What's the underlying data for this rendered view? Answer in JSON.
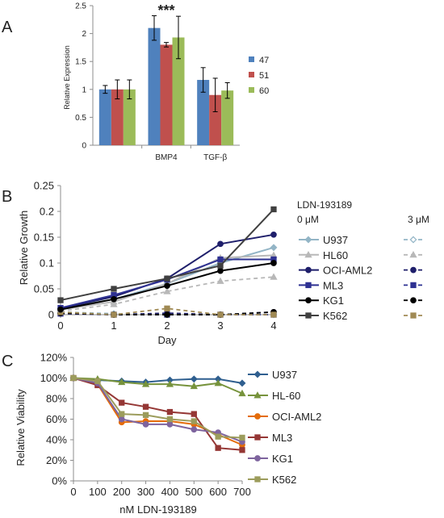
{
  "chart_data": [
    {
      "type": "bar",
      "panel_label": "A",
      "categories": [
        "",
        "BMP4",
        "TGF-β"
      ],
      "series": [
        {
          "name": "47",
          "values": [
            1.0,
            2.1,
            1.17
          ],
          "error": [
            0.07,
            0.22,
            0.22
          ],
          "color": "#4f81bd"
        },
        {
          "name": "51",
          "values": [
            1.0,
            1.8,
            0.9
          ],
          "error": [
            0.17,
            0.04,
            0.3
          ],
          "color": "#c0504d"
        },
        {
          "name": "60",
          "values": [
            1.0,
            1.93,
            0.98
          ],
          "error": [
            0.17,
            0.38,
            0.14
          ],
          "color": "#9bbb59"
        }
      ],
      "xlabel": "",
      "ylabel": "Relative Expression",
      "ylim": [
        0,
        2.5
      ],
      "yticks": [
        "0",
        "0.5",
        "1",
        "1.5",
        "2",
        "2.5"
      ],
      "annotations": [
        {
          "text": "***",
          "category": "BMP4"
        }
      ],
      "legend_position": "right"
    },
    {
      "type": "line",
      "panel_label": "B",
      "x": [
        0,
        1,
        2,
        3,
        4
      ],
      "xlabel": "Day",
      "ylabel": "Relative Growth",
      "ylim": [
        0,
        0.25
      ],
      "xticks": [
        "0",
        "1",
        "2",
        "3",
        "4"
      ],
      "yticks": [
        "0",
        "0.05",
        "0.1",
        "0.15",
        "0.2",
        "0.25"
      ],
      "legend_title": "LDN-193189",
      "legend_col1": "0 μM",
      "legend_col2": "3 μM",
      "legend_position": "right",
      "series": [
        {
          "name": "U937",
          "color": "#93b5c6",
          "marker": "diamond",
          "values": [
            0.012,
            0.03,
            0.06,
            0.1,
            0.13
          ],
          "treated": [
            0.005,
            0.002,
            0.0,
            0.0,
            0.0
          ]
        },
        {
          "name": "HL60",
          "color": "#b8b8b8",
          "marker": "triangle",
          "values": [
            0.01,
            0.025,
            0.06,
            0.11,
            0.115
          ],
          "treated": [
            0.007,
            0.02,
            0.045,
            0.065,
            0.073
          ]
        },
        {
          "name": "OCI-AML2",
          "color": "#1f1f6b",
          "marker": "circle",
          "values": [
            0.012,
            0.035,
            0.07,
            0.137,
            0.155
          ],
          "treated": [
            0.003,
            0.0,
            0.003,
            0.0,
            0.005
          ]
        },
        {
          "name": "ML3",
          "color": "#2e3192",
          "marker": "square",
          "values": [
            0.013,
            0.038,
            0.068,
            0.107,
            0.107
          ],
          "treated": [
            0.002,
            0.0,
            0.0,
            0.0,
            0.0
          ]
        },
        {
          "name": "KG1",
          "color": "#000000",
          "marker": "circle",
          "values": [
            0.01,
            0.03,
            0.056,
            0.085,
            0.1
          ],
          "treated": [
            0.003,
            0.0,
            0.0,
            0.0,
            0.005
          ]
        },
        {
          "name": "K562",
          "color": "#404040",
          "marker": "square",
          "values": [
            0.028,
            0.05,
            0.07,
            0.095,
            0.204
          ],
          "treated": [
            0.005,
            0.0,
            0.012,
            0.0,
            0.0
          ],
          "treated_color": "#a08a54"
        }
      ]
    },
    {
      "type": "line",
      "panel_label": "C",
      "x": [
        0,
        100,
        200,
        300,
        400,
        500,
        600,
        700
      ],
      "xlabel": "nM LDN-193189",
      "ylabel": "Relative Viability",
      "ylim": [
        0,
        1.2
      ],
      "xticks": [
        "0",
        "100",
        "200",
        "300",
        "400",
        "500",
        "600",
        "700"
      ],
      "yticks": [
        "0%",
        "20%",
        "40%",
        "60%",
        "80%",
        "100%",
        "120%"
      ],
      "legend_position": "right",
      "series": [
        {
          "name": "U937",
          "color": "#2f5f8f",
          "marker": "diamond",
          "values": [
            1.0,
            0.98,
            0.97,
            0.96,
            0.98,
            0.99,
            0.99,
            0.95
          ]
        },
        {
          "name": "HL-60",
          "color": "#77933c",
          "marker": "triangle",
          "values": [
            1.0,
            0.99,
            0.96,
            0.94,
            0.94,
            0.92,
            0.95,
            0.85
          ]
        },
        {
          "name": "OCI-AML2",
          "color": "#e46c0a",
          "marker": "circle",
          "values": [
            1.0,
            0.94,
            0.57,
            0.58,
            0.58,
            0.55,
            0.45,
            0.35
          ]
        },
        {
          "name": "ML3",
          "color": "#953735",
          "marker": "square",
          "values": [
            1.0,
            0.93,
            0.76,
            0.72,
            0.67,
            0.65,
            0.32,
            0.3
          ]
        },
        {
          "name": "KG1",
          "color": "#7e649e",
          "marker": "circle",
          "values": [
            1.0,
            0.95,
            0.6,
            0.55,
            0.55,
            0.5,
            0.47,
            0.38
          ]
        },
        {
          "name": "K562",
          "color": "#9c9c5c",
          "marker": "square",
          "values": [
            1.0,
            0.97,
            0.65,
            0.64,
            0.6,
            0.58,
            0.43,
            0.42
          ]
        }
      ]
    }
  ]
}
